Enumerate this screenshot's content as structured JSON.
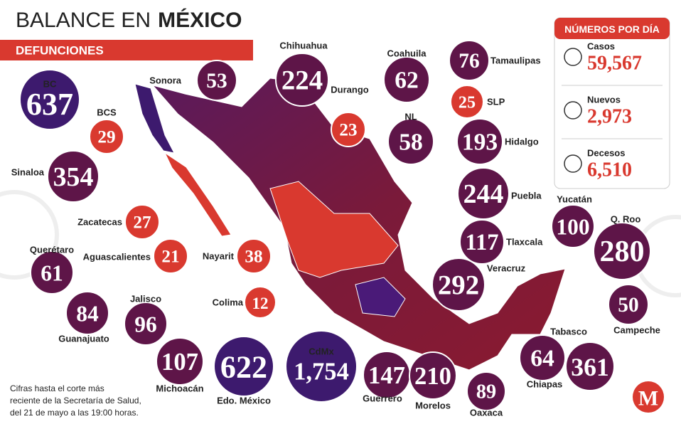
{
  "header": {
    "title_light": "BALANCE EN",
    "title_bold": "MÉXICO",
    "subtitle": "DEFUNCIONES"
  },
  "panel": {
    "title": "NÚMEROS POR DÍA",
    "items": [
      {
        "label": "Casos",
        "value": "59,567"
      },
      {
        "label": "Nuevos",
        "value": "2,973"
      },
      {
        "label": "Decesos",
        "value": "6,510"
      }
    ]
  },
  "states": [
    {
      "name": "BC",
      "value": "637"
    },
    {
      "name": "Sonora",
      "value": "53"
    },
    {
      "name": "Chihuahua",
      "value": "224"
    },
    {
      "name": "Durango",
      "value": "23"
    },
    {
      "name": "Coahuila",
      "value": "62"
    },
    {
      "name": "Tamaulipas",
      "value": "76"
    },
    {
      "name": "SLP",
      "value": "25"
    },
    {
      "name": "NL",
      "value": "58"
    },
    {
      "name": "Hidalgo",
      "value": "193"
    },
    {
      "name": "BCS",
      "value": "29"
    },
    {
      "name": "Sinaloa",
      "value": "354"
    },
    {
      "name": "Puebla",
      "value": "244"
    },
    {
      "name": "Zacatecas",
      "value": "27"
    },
    {
      "name": "Aguascalientes",
      "value": "21"
    },
    {
      "name": "Nayarit",
      "value": "38"
    },
    {
      "name": "Querétaro",
      "value": "61"
    },
    {
      "name": "Tlaxcala",
      "value": "117"
    },
    {
      "name": "Yucatán",
      "value": "100"
    },
    {
      "name": "Q. Roo",
      "value": "280"
    },
    {
      "name": "Veracruz",
      "value": "292"
    },
    {
      "name": "Guanajuato",
      "value": "84"
    },
    {
      "name": "Jalisco",
      "value": "96"
    },
    {
      "name": "Colima",
      "value": "12"
    },
    {
      "name": "Campeche",
      "value": "50"
    },
    {
      "name": "Tabasco",
      "value": "361"
    },
    {
      "name": "Michoacán",
      "value": "107"
    },
    {
      "name": "Edo. México",
      "value": "622"
    },
    {
      "name": "CdMx",
      "value": "1,754"
    },
    {
      "name": "Guerrero",
      "value": "147"
    },
    {
      "name": "Morelos",
      "value": "210"
    },
    {
      "name": "Oaxaca",
      "value": "89"
    },
    {
      "name": "Chiapas",
      "value": "64"
    }
  ],
  "footnote": [
    "Cifras hasta el corte más",
    "reciente de la Secretaría de Salud,",
    "del 21 de mayo a las 19:00 horas."
  ],
  "logo": "M"
}
